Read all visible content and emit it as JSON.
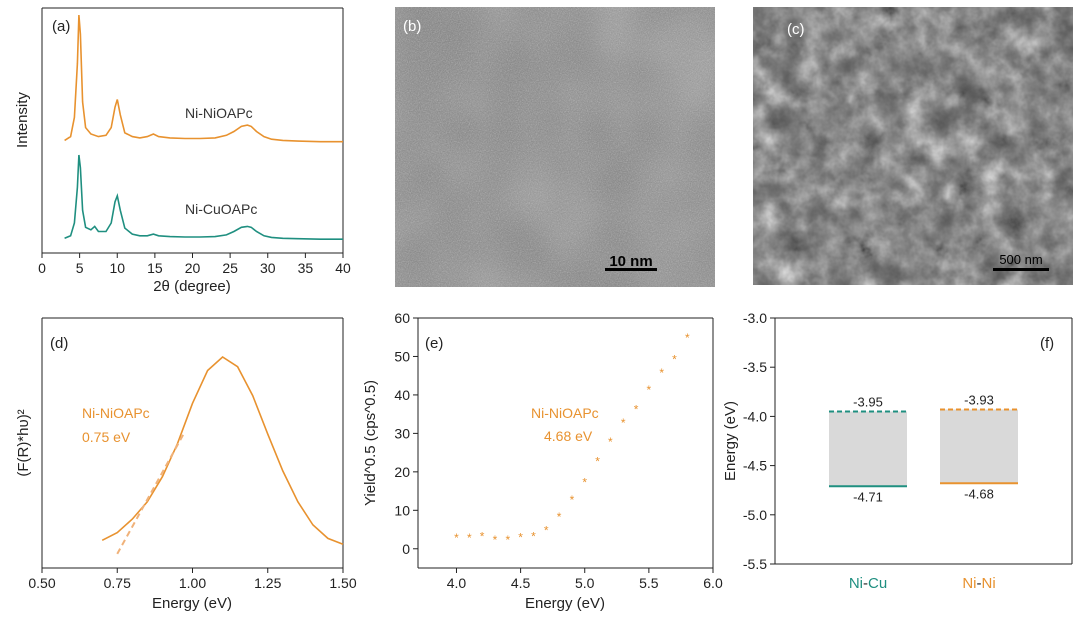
{
  "colors": {
    "orange": "#E8922F",
    "teal": "#1F8F80",
    "axis": "#222222",
    "band": "#D9D9D9",
    "dash_orange": "#F0B27A"
  },
  "panels": {
    "a": {
      "label": "(a)"
    },
    "b": {
      "label": "(b)",
      "scalebar": "10 nm"
    },
    "c": {
      "label": "(c)",
      "scalebar": "500 nm"
    },
    "d": {
      "label": "(d)"
    },
    "e": {
      "label": "(e)"
    },
    "f": {
      "label": "(f)"
    }
  },
  "chart_data": [
    {
      "id": "a",
      "type": "line",
      "xlabel": "2θ (degree)",
      "ylabel": "Intensity",
      "xlim": [
        0,
        40
      ],
      "xticks": [
        "0",
        "5",
        "10",
        "15",
        "20",
        "25",
        "30",
        "35",
        "40"
      ],
      "series": [
        {
          "name": "Ni-NiOAPc",
          "color": "#E8922F",
          "x": [
            3,
            3.8,
            4.3,
            4.7,
            4.9,
            5.1,
            5.4,
            5.8,
            6.5,
            7.5,
            8.5,
            9.2,
            9.7,
            10.0,
            10.4,
            11.0,
            12,
            13,
            14,
            14.8,
            15.5,
            17,
            19,
            21,
            23,
            24.5,
            25.5,
            26.5,
            27.3,
            27.8,
            28.5,
            29.5,
            30.5,
            32,
            34,
            37,
            40
          ],
          "y": [
            0.02,
            0.05,
            0.2,
            0.62,
            1.0,
            0.85,
            0.32,
            0.12,
            0.07,
            0.05,
            0.06,
            0.12,
            0.28,
            0.34,
            0.22,
            0.08,
            0.05,
            0.04,
            0.05,
            0.07,
            0.05,
            0.04,
            0.035,
            0.035,
            0.04,
            0.06,
            0.09,
            0.13,
            0.14,
            0.13,
            0.09,
            0.05,
            0.03,
            0.02,
            0.015,
            0.01,
            0.01
          ]
        },
        {
          "name": "Ni-CuOAPc",
          "color": "#1F8F80",
          "x": [
            3,
            3.8,
            4.3,
            4.7,
            4.9,
            5.1,
            5.4,
            5.8,
            6.5,
            7.0,
            7.5,
            8.5,
            9.2,
            9.7,
            10.0,
            10.4,
            11.0,
            12,
            13,
            14,
            14.8,
            15.5,
            17,
            19,
            21,
            23,
            24.5,
            25.5,
            26.5,
            27.3,
            27.8,
            28.5,
            29.5,
            30.5,
            32,
            34,
            37,
            40
          ],
          "y": [
            0.02,
            0.05,
            0.2,
            0.62,
            1.0,
            0.85,
            0.35,
            0.15,
            0.12,
            0.16,
            0.1,
            0.1,
            0.2,
            0.45,
            0.52,
            0.35,
            0.14,
            0.07,
            0.05,
            0.05,
            0.07,
            0.05,
            0.04,
            0.035,
            0.035,
            0.04,
            0.06,
            0.1,
            0.15,
            0.16,
            0.15,
            0.1,
            0.05,
            0.03,
            0.02,
            0.015,
            0.01,
            0.01
          ]
        }
      ],
      "annotations": [
        "Ni-NiOAPc",
        "Ni-CuOAPc"
      ]
    },
    {
      "id": "d",
      "type": "line",
      "xlabel": "Energy (eV)",
      "ylabel": "(F(R)*hυ)²",
      "xlim": [
        0.5,
        1.5
      ],
      "xticks": [
        "0.50",
        "0.75",
        "1.00",
        "1.25",
        "1.50"
      ],
      "series": [
        {
          "name": "Ni-NiOAPc",
          "color": "#E8922F",
          "x": [
            0.7,
            0.75,
            0.8,
            0.85,
            0.9,
            0.95,
            1.0,
            1.05,
            1.1,
            1.15,
            1.2,
            1.25,
            1.3,
            1.35,
            1.4,
            1.45,
            1.5
          ],
          "y": [
            0.05,
            0.09,
            0.16,
            0.25,
            0.38,
            0.55,
            0.76,
            0.93,
            1.0,
            0.95,
            0.8,
            0.6,
            0.41,
            0.25,
            0.13,
            0.06,
            0.03
          ]
        }
      ],
      "tangent": {
        "x": [
          0.75,
          0.97
        ],
        "y": [
          -0.02,
          0.6
        ]
      },
      "annotations": [
        "Ni-NiOAPc",
        "0.75 eV"
      ]
    },
    {
      "id": "e",
      "type": "scatter",
      "xlabel": "Energy (eV)",
      "ylabel": "Yield^0.5 (cps^0.5)",
      "xlim": [
        3.7,
        6.0
      ],
      "ylim": [
        -5,
        60
      ],
      "xticks": [
        "4.0",
        "4.5",
        "5.0",
        "5.5",
        "6.0"
      ],
      "yticks": [
        "0",
        "10",
        "20",
        "30",
        "40",
        "50",
        "60"
      ],
      "series": [
        {
          "name": "Ni-NiOAPc",
          "color": "#E8922F",
          "x": [
            4.0,
            4.1,
            4.2,
            4.3,
            4.4,
            4.5,
            4.6,
            4.7,
            4.8,
            4.9,
            5.0,
            5.1,
            5.2,
            5.3,
            5.4,
            5.5,
            5.6,
            5.7,
            5.8
          ],
          "y": [
            3.0,
            3.0,
            3.5,
            2.5,
            2.5,
            3.2,
            3.5,
            5.0,
            8.5,
            13.0,
            17.5,
            23.0,
            28.0,
            33.0,
            36.5,
            41.5,
            46.0,
            49.5,
            55.0
          ]
        }
      ],
      "annotations": [
        "Ni-NiOAPc",
        "4.68 eV"
      ]
    },
    {
      "id": "f",
      "type": "bar",
      "xlabel": "",
      "ylabel": "Energy (eV)",
      "ylim": [
        -5.5,
        -3.0
      ],
      "yticks": [
        "-3.0",
        "-3.5",
        "-4.0",
        "-4.5",
        "-5.0",
        "-5.5"
      ],
      "categories": [
        "Ni-Cu",
        "Ni-Ni"
      ],
      "bands": [
        {
          "category": "Ni-Cu",
          "top": -3.95,
          "bottom": -4.71,
          "top_label": "-3.95",
          "bottom_label": "-4.71",
          "color": "#1F8F80"
        },
        {
          "category": "Ni-Ni",
          "top": -3.93,
          "bottom": -4.68,
          "top_label": "-3.93",
          "bottom_label": "-4.68",
          "color": "#E8922F"
        }
      ]
    }
  ]
}
